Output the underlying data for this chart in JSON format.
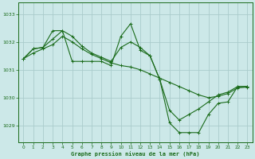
{
  "title": "Graphe pression niveau de la mer (hPa)",
  "background_color": "#cce8e8",
  "grid_color": "#aacccc",
  "line_color": "#1a6b1a",
  "tick_label_color": "#1a6b1a",
  "xlim": [
    -0.5,
    23.5
  ],
  "ylim": [
    1028.4,
    1033.4
  ],
  "yticks": [
    1029,
    1030,
    1031,
    1032,
    1033
  ],
  "xticks": [
    0,
    1,
    2,
    3,
    4,
    5,
    6,
    7,
    8,
    9,
    10,
    11,
    12,
    13,
    14,
    15,
    16,
    17,
    18,
    19,
    20,
    21,
    22,
    23
  ],
  "hours_jagged": [
    0,
    1,
    2,
    3,
    4,
    5,
    6,
    7,
    8,
    9,
    10,
    11,
    12,
    13,
    14,
    15,
    16,
    17,
    18,
    19,
    20,
    21,
    22,
    23
  ],
  "vals_jagged": [
    1031.4,
    1031.75,
    1031.8,
    1032.4,
    1032.4,
    1031.3,
    1031.3,
    1031.3,
    1031.3,
    1031.15,
    1032.2,
    1032.65,
    1031.7,
    1031.5,
    1030.65,
    1029.1,
    1028.75,
    1028.75,
    1028.75,
    1029.4,
    1029.8,
    1029.85,
    1030.4,
    1030.4
  ],
  "hours_smooth": [
    0,
    1,
    2,
    3,
    4,
    5,
    6,
    7,
    8,
    9,
    10,
    11,
    12,
    13,
    14,
    15,
    16,
    17,
    18,
    19,
    20,
    21,
    22,
    23
  ],
  "vals_smooth": [
    1031.4,
    1031.6,
    1031.75,
    1031.9,
    1032.2,
    1032.0,
    1031.75,
    1031.55,
    1031.4,
    1031.25,
    1031.15,
    1031.1,
    1031.0,
    1030.85,
    1030.7,
    1030.55,
    1030.4,
    1030.25,
    1030.1,
    1030.0,
    1030.05,
    1030.15,
    1030.35,
    1030.38
  ],
  "hours_third": [
    0,
    1,
    2,
    3,
    4,
    5,
    6,
    7,
    8,
    9,
    10,
    11,
    12,
    13,
    14,
    15,
    16,
    17,
    18,
    19,
    20,
    21,
    22,
    23
  ],
  "vals_third": [
    1031.4,
    1031.75,
    1031.8,
    1032.1,
    1032.4,
    1032.2,
    1031.85,
    1031.6,
    1031.45,
    1031.3,
    1031.8,
    1032.0,
    1031.8,
    1031.5,
    1030.65,
    1029.55,
    1029.2,
    1029.4,
    1029.6,
    1029.85,
    1030.1,
    1030.2,
    1030.4,
    1030.4
  ]
}
